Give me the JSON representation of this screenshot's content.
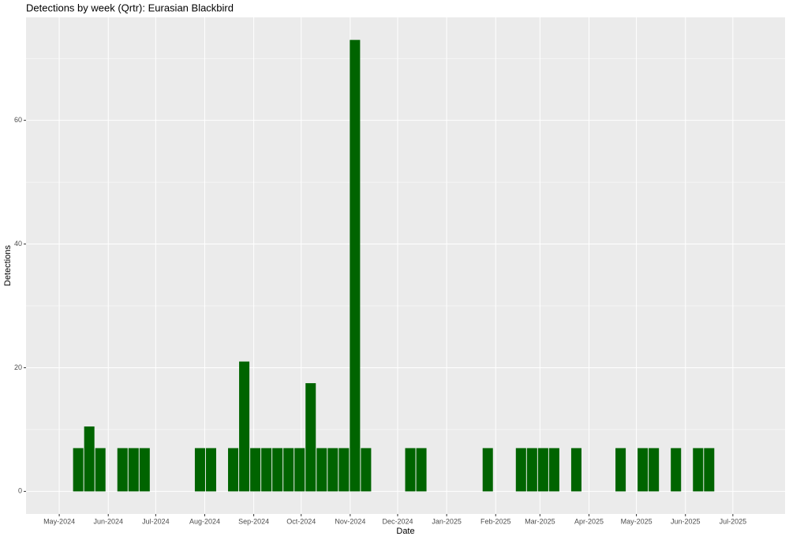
{
  "chart_data": {
    "type": "bar",
    "title": "Detections by week (Qrtr): Eurasian Blackbird",
    "x_label": "Date",
    "y_label": "Detections",
    "x": [
      "2024-05-13",
      "2024-05-20",
      "2024-05-27",
      "2024-06-10",
      "2024-06-17",
      "2024-06-24",
      "2024-07-29",
      "2024-08-05",
      "2024-08-19",
      "2024-08-26",
      "2024-09-02",
      "2024-09-09",
      "2024-09-16",
      "2024-09-23",
      "2024-09-30",
      "2024-10-07",
      "2024-10-14",
      "2024-10-21",
      "2024-10-28",
      "2024-11-04",
      "2024-11-11",
      "2024-12-09",
      "2024-12-16",
      "2025-01-27",
      "2025-02-17",
      "2025-02-24",
      "2025-03-03",
      "2025-03-10",
      "2025-03-24",
      "2025-04-21",
      "2025-05-05",
      "2025-05-12",
      "2025-05-26",
      "2025-06-09",
      "2025-06-16"
    ],
    "values": [
      7,
      10.5,
      7,
      7,
      7,
      7,
      7,
      7,
      7,
      21,
      7,
      7,
      7,
      7,
      7,
      17.5,
      7,
      7,
      7,
      73,
      7,
      7,
      7,
      7,
      7,
      7,
      7,
      7,
      7,
      7,
      7,
      7,
      7,
      7,
      7
    ],
    "color": "#006400",
    "xlim": [
      "2024-04-10",
      "2025-08-03"
    ],
    "xticks": [
      {
        "value": "2024-05-01",
        "label": "May-2024"
      },
      {
        "value": "2024-06-01",
        "label": "Jun-2024"
      },
      {
        "value": "2024-07-01",
        "label": "Jul-2024"
      },
      {
        "value": "2024-08-01",
        "label": "Aug-2024"
      },
      {
        "value": "2024-09-01",
        "label": "Sep-2024"
      },
      {
        "value": "2024-10-01",
        "label": "Oct-2024"
      },
      {
        "value": "2024-11-01",
        "label": "Nov-2024"
      },
      {
        "value": "2024-12-01",
        "label": "Dec-2024"
      },
      {
        "value": "2025-01-01",
        "label": "Jan-2025"
      },
      {
        "value": "2025-02-01",
        "label": "Feb-2025"
      },
      {
        "value": "2025-03-01",
        "label": "Mar-2025"
      },
      {
        "value": "2025-04-01",
        "label": "Apr-2025"
      },
      {
        "value": "2025-05-01",
        "label": "May-2025"
      },
      {
        "value": "2025-06-01",
        "label": "Jun-2025"
      },
      {
        "value": "2025-07-01",
        "label": "Jul-2025"
      }
    ],
    "ylim": [
      -3.65,
      76.65
    ],
    "yticks": [
      0,
      20,
      40,
      60
    ],
    "yminorticks": [
      10,
      30,
      50,
      70
    ],
    "grid": true
  }
}
